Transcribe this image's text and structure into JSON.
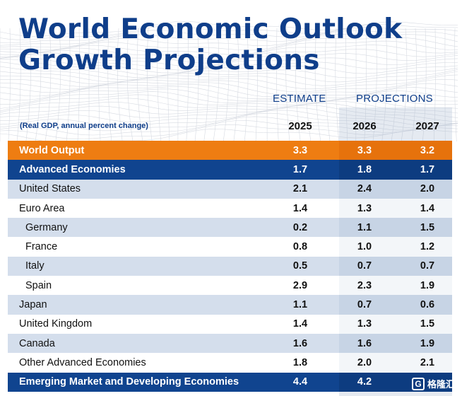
{
  "title": {
    "line1": "World Economic Outlook",
    "line2": "Growth Projections"
  },
  "header": {
    "estimate": "ESTIMATE",
    "projections": "PROJECTIONS",
    "note": "(Real GDP, annual percent change)",
    "years": [
      "2025",
      "2026",
      "2027"
    ]
  },
  "rows": [
    {
      "name": "World Output",
      "values": [
        "3.3",
        "3.3",
        "3.2"
      ]
    },
    {
      "name": "Advanced Economies",
      "values": [
        "1.7",
        "1.8",
        "1.7"
      ]
    },
    {
      "name": "United States",
      "values": [
        "2.1",
        "2.4",
        "2.0"
      ]
    },
    {
      "name": "Euro Area",
      "values": [
        "1.4",
        "1.3",
        "1.4"
      ]
    },
    {
      "name": "Germany",
      "values": [
        "0.2",
        "1.1",
        "1.5"
      ]
    },
    {
      "name": "France",
      "values": [
        "0.8",
        "1.0",
        "1.2"
      ]
    },
    {
      "name": "Italy",
      "values": [
        "0.5",
        "0.7",
        "0.7"
      ]
    },
    {
      "name": "Spain",
      "values": [
        "2.9",
        "2.3",
        "1.9"
      ]
    },
    {
      "name": "Japan",
      "values": [
        "1.1",
        "0.7",
        "0.6"
      ]
    },
    {
      "name": "United Kingdom",
      "values": [
        "1.4",
        "1.3",
        "1.5"
      ]
    },
    {
      "name": "Canada",
      "values": [
        "1.6",
        "1.6",
        "1.9"
      ]
    },
    {
      "name": "Other Advanced Economies",
      "values": [
        "1.8",
        "2.0",
        "2.1"
      ]
    },
    {
      "name": "Emerging Market and Developing Economies",
      "values": [
        "4.4",
        "4.2",
        ""
      ]
    }
  ],
  "watermark": {
    "logo": "G",
    "text": "格隆汇"
  },
  "colors": {
    "navy": "#10448f",
    "orange": "#ee7d12",
    "title_blue": "#0f3e8a",
    "row_shade": "#c7d3e5"
  },
  "icons": {
    "watermark_logo": "gelonghui-logo-icon",
    "background": "wave-mesh-pattern"
  }
}
